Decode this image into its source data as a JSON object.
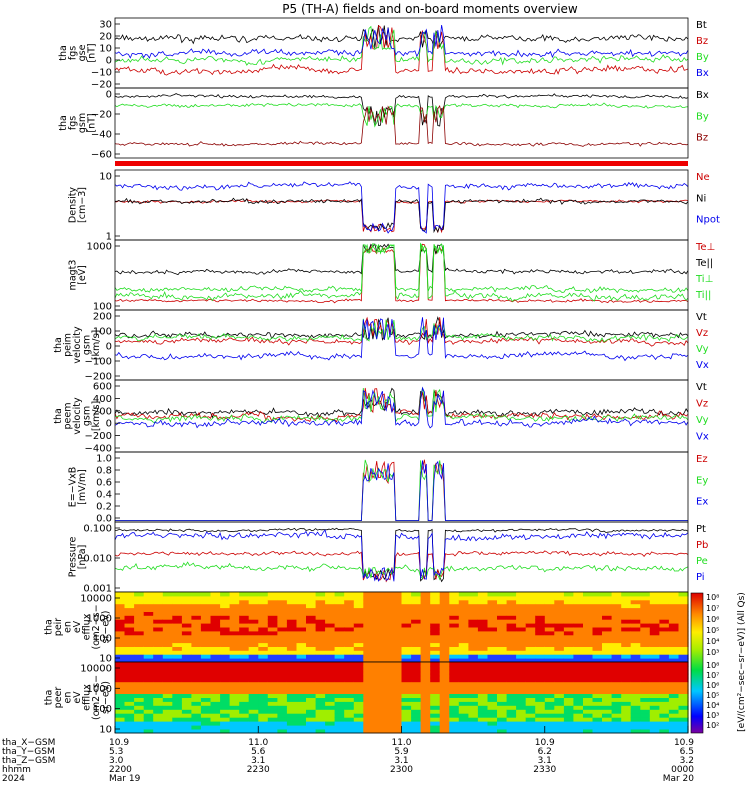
{
  "title": "P5 (TH-A) fields and on-board moments overview",
  "colors": {
    "black": "#000000",
    "red": "#cc0000",
    "green": "#22dd22",
    "blue": "#0000ee",
    "dark_red": "#8b0000"
  },
  "chart_data": [
    {
      "id": "fgs_gse",
      "type": "line",
      "ylabel": [
        "tha",
        "fgs",
        "gse",
        "[nT]"
      ],
      "yticks": [
        "30",
        "20",
        "10",
        "0",
        "−10",
        "−20"
      ],
      "ylim": [
        -27,
        37
      ],
      "series": [
        {
          "name": "Bt",
          "color": "#000000"
        },
        {
          "name": "Bz",
          "color": "#cc0000"
        },
        {
          "name": "By",
          "color": "#22dd22"
        },
        {
          "name": "Bx",
          "color": "#0000ee"
        }
      ]
    },
    {
      "id": "fgs_gsm",
      "type": "line",
      "ylabel": [
        "tha",
        "fgs",
        "gsm",
        "[nT]"
      ],
      "yticks": [
        "0",
        "−20",
        "−40",
        "−60"
      ],
      "ylim": [
        -78,
        14
      ],
      "series": [
        {
          "name": "Bx",
          "color": "#000000"
        },
        {
          "name": "By",
          "color": "#22dd22"
        },
        {
          "name": "Bz",
          "color": "#8b0000"
        }
      ]
    },
    {
      "id": "density",
      "type": "line",
      "scale": "log",
      "ylabel": [
        "Density",
        "[cm−3]"
      ],
      "yticks": [
        "10",
        "1"
      ],
      "series": [
        {
          "name": "Ne",
          "color": "#cc0000"
        },
        {
          "name": "Ni",
          "color": "#000000"
        },
        {
          "name": "Npot",
          "color": "#0000ee"
        }
      ]
    },
    {
      "id": "temperature",
      "type": "line",
      "scale": "log",
      "ylabel": [
        "magt3",
        "[eV]"
      ],
      "yticks": [
        "1000",
        "100"
      ],
      "series": [
        {
          "name": "Te⊥",
          "color": "#cc0000"
        },
        {
          "name": "Te||",
          "color": "#000000"
        },
        {
          "name": "Ti⊥",
          "color": "#22dd22"
        },
        {
          "name": "Ti||",
          "color": "#22dd22"
        }
      ]
    },
    {
      "id": "peim_velocity",
      "type": "line",
      "ylabel": [
        "tha",
        "peim",
        "velocity",
        "gsm",
        "[km/s]"
      ],
      "yticks": [
        "200",
        "100",
        "0",
        "−100",
        "−200"
      ],
      "ylim": [
        -210,
        215
      ],
      "series": [
        {
          "name": "Vt",
          "color": "#000000"
        },
        {
          "name": "Vz",
          "color": "#cc0000"
        },
        {
          "name": "Vy",
          "color": "#22dd22"
        },
        {
          "name": "Vx",
          "color": "#0000ee"
        }
      ]
    },
    {
      "id": "peem_velocity",
      "type": "line",
      "ylabel": [
        "tha",
        "peem",
        "velocity",
        "gsm",
        "[km/s]"
      ],
      "yticks": [
        "600",
        "400",
        "200",
        "0",
        "−200",
        "−400"
      ],
      "ylim": [
        -430,
        640
      ],
      "series": [
        {
          "name": "Vt",
          "color": "#000000"
        },
        {
          "name": "Vz",
          "color": "#cc0000"
        },
        {
          "name": "Vy",
          "color": "#22dd22"
        },
        {
          "name": "Vx",
          "color": "#0000ee"
        }
      ]
    },
    {
      "id": "efield",
      "type": "line",
      "ylabel": [
        "E=−VxB",
        "[mV/m]"
      ],
      "yticks": [
        "1.0",
        "0.8",
        "0.6",
        "0.4",
        "0.2",
        "0.0"
      ],
      "ylim": [
        -0.05,
        1.02
      ],
      "series": [
        {
          "name": "Ez",
          "color": "#cc0000"
        },
        {
          "name": "Ey",
          "color": "#22dd22"
        },
        {
          "name": "Ex",
          "color": "#0000ee"
        }
      ]
    },
    {
      "id": "pressure",
      "type": "line",
      "scale": "log",
      "ylabel": [
        "Pressure",
        "[nPa]"
      ],
      "yticks": [
        "0.100",
        "0.010",
        "0.001"
      ],
      "series": [
        {
          "name": "Pt",
          "color": "#000000"
        },
        {
          "name": "Pb",
          "color": "#cc0000"
        },
        {
          "name": "Pe",
          "color": "#22dd22"
        },
        {
          "name": "Pi",
          "color": "#0000ee"
        }
      ]
    },
    {
      "id": "peir_spec",
      "type": "heatmap",
      "ylabel": [
        "tha",
        "peir",
        "en",
        "eV",
        "efflux",
        "(cm2−s−",
        "sr−eV)"
      ],
      "yticks": [
        "10000",
        "1000",
        "100",
        "10"
      ]
    },
    {
      "id": "peer_spec",
      "type": "heatmap",
      "ylabel": [
        "tha",
        "peer",
        "en",
        "eV",
        "efflux",
        "(cm2−s−",
        "sr−eV)"
      ],
      "yticks": [
        "10000",
        "1000",
        "100",
        "10"
      ]
    }
  ],
  "colorbar": {
    "label": "[eV/(cm²−sec−sr−eV)] (All Qs)",
    "ticks_top": [
      "10⁸",
      "10⁷",
      "10⁶",
      "10⁵",
      "10⁴",
      "10³"
    ],
    "ticks_bottom": [
      "10⁸",
      "10⁷",
      "10⁶",
      "10⁵",
      "10⁴",
      "10³",
      "10²"
    ]
  },
  "xaxis": {
    "row_labels": [
      "tha_X−GSM",
      "tha_Y−GSM",
      "tha_Z−GSM",
      "hhmm",
      "2024"
    ],
    "columns": [
      {
        "x": "10.9",
        "y": "5.3",
        "z": "3.0",
        "hhmm": "2200",
        "date": "Mar 19"
      },
      {
        "x": "11.0",
        "y": "5.6",
        "z": "3.1",
        "hhmm": "2230",
        "date": ""
      },
      {
        "x": "11.0",
        "y": "5.9",
        "z": "3.1",
        "hhmm": "2300",
        "date": ""
      },
      {
        "x": "10.9",
        "y": "6.2",
        "z": "3.1",
        "hhmm": "2330",
        "date": ""
      },
      {
        "x": "10.9",
        "y": "6.5",
        "z": "3.2",
        "hhmm": "0000",
        "date": "Mar 20"
      }
    ]
  }
}
